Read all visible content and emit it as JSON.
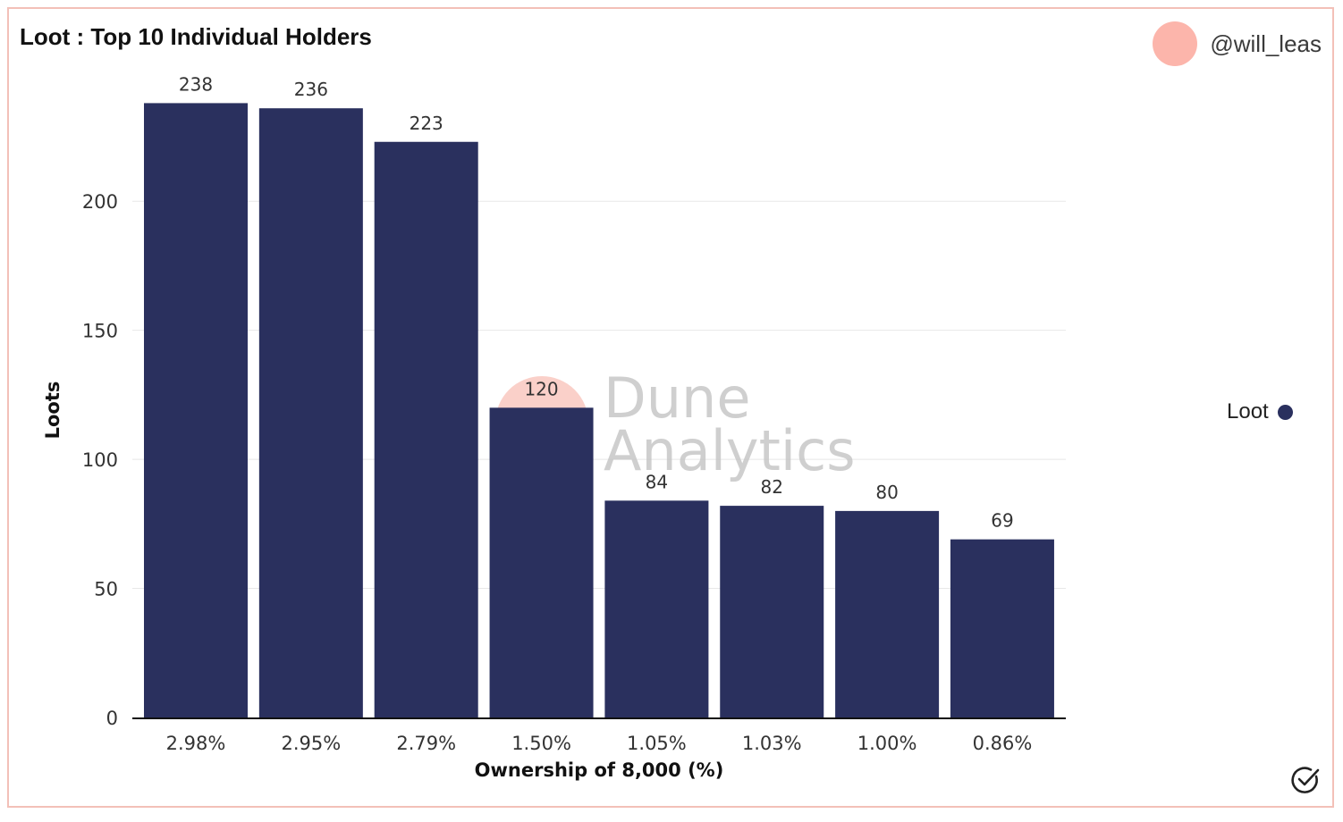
{
  "header": {
    "title": "Loot : Top 10 Individual Holders",
    "author": "@will_leas"
  },
  "watermark": {
    "line1": "Dune",
    "line2": "Analytics"
  },
  "colors": {
    "bar": "#2a305e",
    "frame": "#f3c0b8",
    "avatar": "#fcb5ab"
  },
  "icons": {
    "badge": "check-circle-icon"
  },
  "chart_data": {
    "type": "bar",
    "categories": [
      "2.98%",
      "2.95%",
      "2.79%",
      "1.50%",
      "1.05%",
      "1.03%",
      "1.00%",
      "0.86%"
    ],
    "series": [
      {
        "name": "Loot",
        "values": [
          238,
          236,
          223,
          120,
          84,
          82,
          80,
          69
        ]
      }
    ],
    "xlabel": "Ownership of 8,000 (%)",
    "ylabel": "Loots",
    "ylim": [
      0,
      250
    ],
    "yticks": [
      0,
      50,
      100,
      150,
      200
    ],
    "grid": true,
    "legend": "right"
  }
}
